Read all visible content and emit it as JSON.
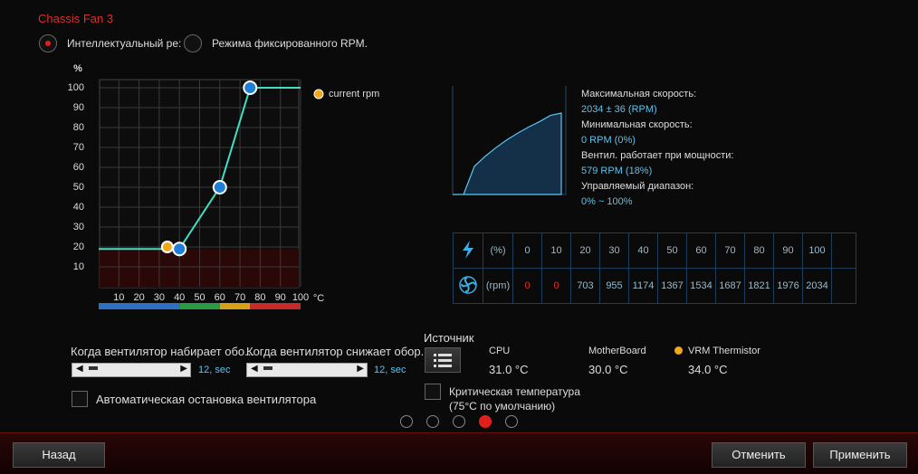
{
  "title": "Chassis Fan 3",
  "modes": [
    "Интеллектуальный ре:",
    "Режима фиксированного RPM."
  ],
  "fan_curve": {
    "y_unit": "%",
    "x_unit": "°C",
    "xlim": [
      0,
      100
    ],
    "ylim": [
      0,
      100
    ],
    "xticks": [
      10,
      20,
      30,
      40,
      50,
      60,
      70,
      80,
      90,
      100
    ],
    "yticks": [
      10,
      20,
      30,
      40,
      50,
      60,
      70,
      80,
      90,
      100
    ],
    "line": {
      "x": [
        0,
        40,
        60,
        75,
        100
      ],
      "y": [
        19,
        19,
        50,
        100,
        100
      ]
    },
    "points": {
      "x": [
        40,
        60,
        75
      ],
      "y": [
        19,
        50,
        100
      ]
    },
    "current": {
      "name": "current rpm",
      "x": 34,
      "y": 20
    }
  },
  "speed_info": [
    {
      "label": "Максимальная скорость:",
      "value": "2034 ± 36 (RPM)"
    },
    {
      "label": "Минимальная скорость:",
      "value": "0 RPM (0%)"
    },
    {
      "label": "Вентил. работает при мощности:",
      "value": "579 RPM (18%)"
    },
    {
      "label": "Управляемый диапазон:",
      "value": "0% ~ 100%"
    }
  ],
  "speed_table": {
    "percent_label": "(%)",
    "rpm_label": "(rpm)",
    "percent": [
      0,
      10,
      20,
      30,
      40,
      50,
      60,
      70,
      80,
      90,
      100
    ],
    "rpm": [
      0,
      0,
      703,
      955,
      1174,
      1367,
      1534,
      1687,
      1821,
      1976,
      2034
    ]
  },
  "sliders": [
    {
      "label": "Когда вентилятор набирает обо...",
      "value": "12, sec"
    },
    {
      "label": "Когда вентилятор снижает обор...",
      "value": "12, sec"
    }
  ],
  "auto_stop": "Автоматическая остановка вентилятора",
  "source": {
    "title": "Источник",
    "sensors": [
      {
        "name": "CPU",
        "value": "31.0 °C"
      },
      {
        "name": "MotherBoard",
        "value": "30.0 °C"
      },
      {
        "name": "VRM Thermistor",
        "value": "34.0 °C"
      }
    ]
  },
  "critical": [
    "Критическая температура",
    "(75°C по умолчанию)"
  ],
  "buttons": {
    "back": "Назад",
    "cancel": "Отменить",
    "apply": "Применить"
  }
}
